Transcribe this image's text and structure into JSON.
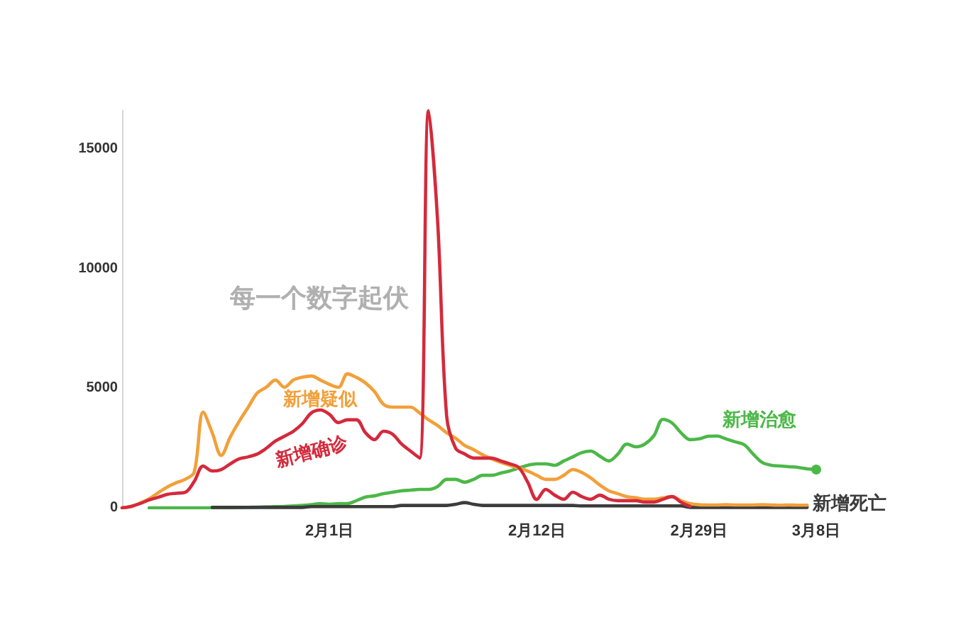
{
  "chart_data": {
    "type": "line",
    "categories": [
      null,
      null,
      null,
      null,
      null,
      null,
      null,
      null,
      null,
      null,
      null,
      null,
      null,
      null,
      null,
      null,
      null,
      null,
      null,
      null,
      null,
      null,
      null,
      "2月1日",
      null,
      null,
      null,
      null,
      null,
      null,
      null,
      null,
      null,
      null,
      null,
      null,
      null,
      null,
      null,
      null,
      null,
      null,
      null,
      null,
      null,
      null,
      "2月12日",
      null,
      null,
      null,
      null,
      null,
      null,
      null,
      null,
      null,
      null,
      null,
      null,
      null,
      null,
      null,
      null,
      null,
      "2月29日",
      null,
      null,
      null,
      null,
      null,
      null,
      null,
      null,
      null,
      null,
      null,
      null,
      "3月8日"
    ],
    "ylim": [
      0,
      16600
    ],
    "yticks": [
      0,
      5000,
      10000,
      15000
    ],
    "grid": false,
    "legend": false,
    "annotations": [
      "每一个数字起伏"
    ],
    "series": [
      {
        "name": "新增疑似",
        "color": "#f2a03a",
        "values": [
          0,
          50,
          200,
          380,
          630,
          870,
          1050,
          1190,
          1490,
          4000,
          3140,
          2190,
          2960,
          3620,
          4210,
          4800,
          5040,
          5340,
          5040,
          5340,
          5460,
          5510,
          5340,
          5160,
          5040,
          5600,
          5450,
          5220,
          4860,
          4330,
          4210,
          4210,
          4210,
          3970,
          3680,
          3440,
          3140,
          2910,
          2610,
          2430,
          2220,
          2050,
          1900,
          1780,
          1660,
          1540,
          1360,
          1190,
          1190,
          1360,
          1600,
          1480,
          1250,
          950,
          710,
          590,
          470,
          420,
          360,
          360,
          420,
          470,
          300,
          180,
          130,
          120,
          120,
          130,
          120,
          120,
          120,
          130,
          120,
          110,
          120,
          110,
          110,
          null
        ]
      },
      {
        "name": "新增确诊",
        "color": "#d42a3c",
        "values": [
          0,
          60,
          180,
          330,
          440,
          560,
          610,
          650,
          1100,
          1750,
          1540,
          1600,
          1840,
          2050,
          2130,
          2250,
          2490,
          2790,
          2990,
          3200,
          3520,
          3970,
          4090,
          3910,
          3560,
          3680,
          3680,
          3140,
          2850,
          3200,
          3080,
          2670,
          2370,
          2080,
          16600,
          12000,
          3850,
          2490,
          2250,
          2080,
          2080,
          2080,
          1960,
          1840,
          1690,
          1070,
          350,
          770,
          530,
          360,
          650,
          470,
          360,
          530,
          360,
          300,
          300,
          300,
          240,
          240,
          360,
          470,
          240,
          60,
          null,
          null,
          null,
          null,
          null,
          null,
          null,
          null,
          null,
          null,
          null,
          null,
          null,
          null
        ]
      },
      {
        "name": "新增治愈",
        "color": "#4cb848",
        "values": [
          null,
          null,
          null,
          0,
          0,
          0,
          0,
          0,
          0,
          0,
          0,
          0,
          0,
          10,
          20,
          30,
          40,
          50,
          60,
          80,
          100,
          130,
          180,
          150,
          180,
          180,
          300,
          450,
          500,
          590,
          650,
          710,
          740,
          770,
          770,
          890,
          1190,
          1190,
          1070,
          1190,
          1360,
          1360,
          1450,
          1540,
          1660,
          1780,
          1840,
          1840,
          1780,
          1960,
          2130,
          2310,
          2370,
          2160,
          1960,
          2250,
          2670,
          2550,
          2670,
          3020,
          3700,
          3550,
          3140,
          2850,
          2880,
          2990,
          3000,
          2880,
          2760,
          2640,
          2250,
          1900,
          1780,
          1750,
          1720,
          1690,
          1630,
          1600
        ]
      },
      {
        "name": "新增死亡",
        "color": "#3c3c3c",
        "values": [
          null,
          null,
          null,
          null,
          null,
          null,
          null,
          null,
          null,
          null,
          20,
          20,
          20,
          20,
          20,
          20,
          20,
          20,
          20,
          20,
          20,
          50,
          50,
          50,
          50,
          50,
          50,
          50,
          50,
          50,
          50,
          100,
          100,
          100,
          100,
          100,
          100,
          150,
          220,
          150,
          100,
          100,
          100,
          100,
          100,
          100,
          100,
          100,
          100,
          100,
          100,
          80,
          80,
          80,
          80,
          80,
          80,
          80,
          80,
          80,
          80,
          80,
          80,
          20,
          20,
          20,
          20,
          20,
          20,
          20,
          20,
          20,
          20,
          20,
          20,
          20,
          20,
          null
        ]
      }
    ]
  }
}
